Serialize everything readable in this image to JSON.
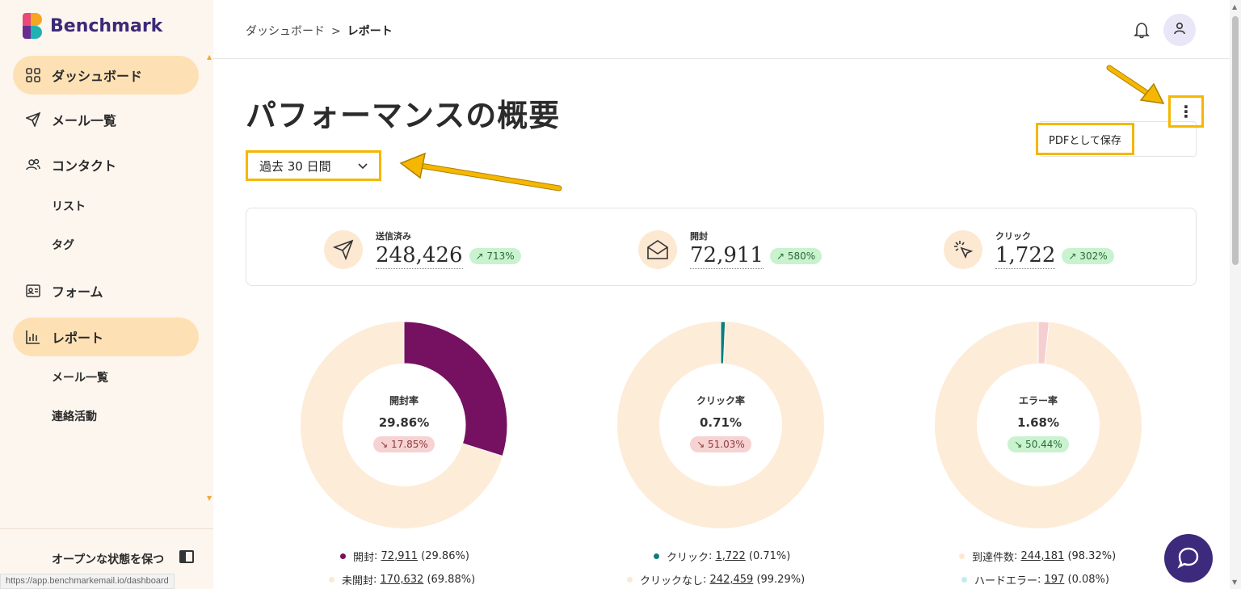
{
  "app": {
    "name": "Benchmark"
  },
  "sidebar": {
    "items": [
      {
        "label": "ダッシュボード",
        "icon": "grid-icon",
        "active": true
      },
      {
        "label": "メール一覧",
        "icon": "send-icon",
        "active": false
      },
      {
        "label": "コンタクト",
        "icon": "users-icon",
        "active": false
      },
      {
        "label": "フォーム",
        "icon": "form-icon",
        "active": false
      },
      {
        "label": "レポート",
        "icon": "bar-chart-icon",
        "active": true
      }
    ],
    "sub_contacts": [
      "リスト",
      "タグ"
    ],
    "sub_reports": [
      "メール一覧",
      "連絡活動"
    ],
    "keep_open": "オープンな状態を保つ",
    "status_url": "https://app.benchmarkemail.io/dashboard"
  },
  "header": {
    "breadcrumb": [
      "ダッシュボード",
      "レポート"
    ],
    "breadcrumb_sep": ">"
  },
  "main": {
    "title": "パフォーマンスの概要",
    "range": "過去 30 日間",
    "menu_item": "PDFとして保存"
  },
  "stats": [
    {
      "label": "送信済み",
      "value": "248,426",
      "change": "↗ 713%",
      "icon": "send-icon"
    },
    {
      "label": "開封",
      "value": "72,911",
      "change": "↗ 580%",
      "icon": "open-mail-icon"
    },
    {
      "label": "クリック",
      "value": "1,722",
      "change": "↗ 302%",
      "icon": "click-icon"
    }
  ],
  "donuts": [
    {
      "title": "開封率",
      "value": "29.86%",
      "change": "↘ 17.85%",
      "change_dir": "down",
      "fraction": 0.2986,
      "color": "#751160",
      "rest_color": "#fdecd8",
      "legend": [
        {
          "name": "開封",
          "count": "72,911",
          "pct": "(29.86%)",
          "color": "#751160"
        },
        {
          "name": "未開封",
          "count": "170,632",
          "pct": "(69.88%)",
          "color": "#fde8d2"
        }
      ]
    },
    {
      "title": "クリック率",
      "value": "0.71%",
      "change": "↘ 51.03%",
      "change_dir": "down",
      "fraction": 0.0071,
      "color": "#0f7c79",
      "rest_color": "#fdecd8",
      "legend": [
        {
          "name": "クリック",
          "count": "1,722",
          "pct": "(0.71%)",
          "color": "#0f7c79"
        },
        {
          "name": "クリックなし",
          "count": "242,459",
          "pct": "(99.29%)",
          "color": "#fde8d2"
        }
      ]
    },
    {
      "title": "エラー率",
      "value": "1.68%",
      "change": "↘ 50.44%",
      "change_dir": "up",
      "fraction": 0.0168,
      "color": "#f5cfcf",
      "rest_color": "#fdecd8",
      "legend": [
        {
          "name": "到達件数",
          "count": "244,181",
          "pct": "(98.32%)",
          "color": "#fde8d2"
        },
        {
          "name": "ハードエラー",
          "count": "197",
          "pct": "(0.08%)",
          "color": "#bfeef0"
        }
      ]
    }
  ]
}
